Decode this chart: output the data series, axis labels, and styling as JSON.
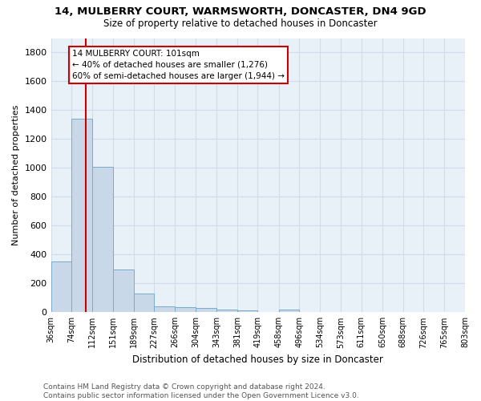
{
  "title1": "14, MULBERRY COURT, WARMSWORTH, DONCASTER, DN4 9GD",
  "title2": "Size of property relative to detached houses in Doncaster",
  "xlabel": "Distribution of detached houses by size in Doncaster",
  "ylabel": "Number of detached properties",
  "footnote": "Contains HM Land Registry data © Crown copyright and database right 2024.\nContains public sector information licensed under the Open Government Licence v3.0.",
  "bin_labels": [
    "36sqm",
    "74sqm",
    "112sqm",
    "151sqm",
    "189sqm",
    "227sqm",
    "266sqm",
    "304sqm",
    "343sqm",
    "381sqm",
    "419sqm",
    "458sqm",
    "496sqm",
    "534sqm",
    "573sqm",
    "611sqm",
    "650sqm",
    "688sqm",
    "726sqm",
    "765sqm",
    "803sqm"
  ],
  "bar_values": [
    350,
    1340,
    1010,
    295,
    130,
    40,
    37,
    30,
    20,
    15,
    0,
    20,
    0,
    0,
    0,
    0,
    0,
    0,
    0,
    0,
    0
  ],
  "bar_color": "#c8d8e8",
  "bar_edge_color": "#7aaacb",
  "bg_color": "#e8f0f8",
  "grid_color": "#d0dce8",
  "annotation_text": "14 MULBERRY COURT: 101sqm\n← 40% of detached houses are smaller (1,276)\n60% of semi-detached houses are larger (1,944) →",
  "annotation_box_color": "#ffffff",
  "annotation_box_edge": "#cc0000",
  "property_line_color": "#cc0000",
  "ylim": [
    0,
    1900
  ],
  "yticks": [
    0,
    200,
    400,
    600,
    800,
    1000,
    1200,
    1400,
    1600,
    1800
  ],
  "bin_edges": [
    36,
    74,
    112,
    151,
    189,
    227,
    266,
    304,
    343,
    381,
    419,
    458,
    496,
    534,
    573,
    611,
    650,
    688,
    726,
    765,
    803
  ],
  "prop_size": 101
}
